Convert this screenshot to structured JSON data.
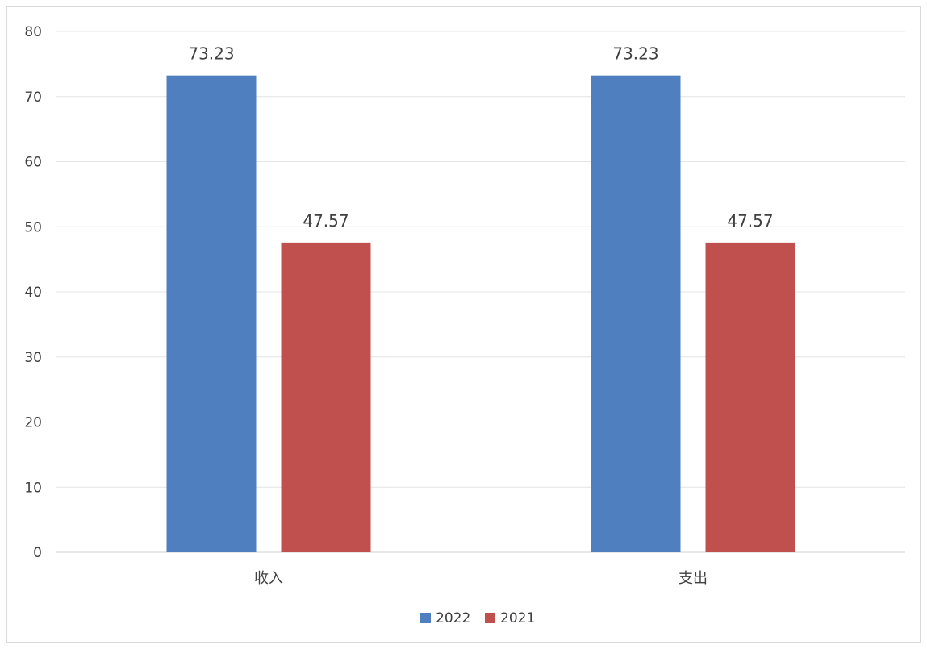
{
  "chart_data": {
    "type": "bar",
    "categories": [
      "收入",
      "支出"
    ],
    "series": [
      {
        "name": "2022",
        "values": [
          73.23,
          73.23
        ],
        "color": "#4F7FBE"
      },
      {
        "name": "2021",
        "values": [
          47.57,
          47.57
        ],
        "color": "#C0504D"
      }
    ],
    "ylim": [
      0,
      80
    ],
    "yticks": [
      0,
      10,
      20,
      30,
      40,
      50,
      60,
      70,
      80
    ],
    "grid": true,
    "legend_position": "bottom",
    "data_labels": true,
    "title": "",
    "xlabel": "",
    "ylabel": ""
  }
}
